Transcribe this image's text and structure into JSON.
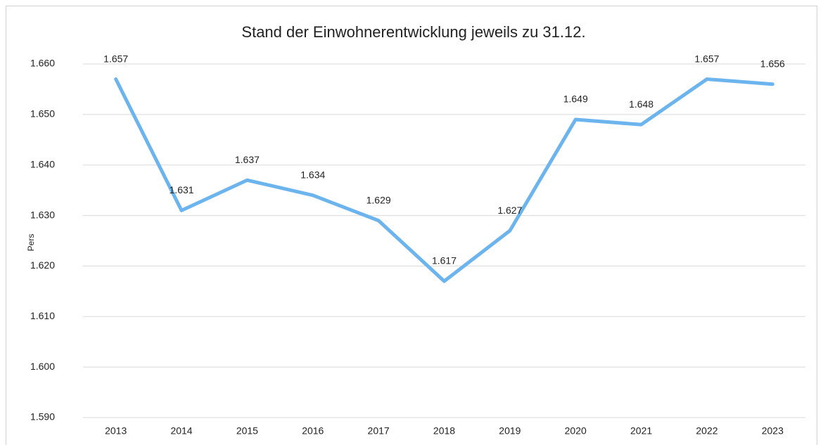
{
  "chart_data": {
    "type": "line",
    "title": "Stand der Einwohnerentwicklung jeweils zu 31.12.",
    "y_label": "Pers",
    "categories": [
      "2013",
      "2014",
      "2015",
      "2016",
      "2017",
      "2018",
      "2019",
      "2020",
      "2021",
      "2022",
      "2023"
    ],
    "values": [
      1657,
      1631,
      1637,
      1634,
      1629,
      1617,
      1627,
      1649,
      1648,
      1657,
      1656
    ],
    "value_labels": [
      "1.657",
      "1.631",
      "1.637",
      "1.634",
      "1.629",
      "1.617",
      "1.627",
      "1.649",
      "1.648",
      "1.657",
      "1.656"
    ],
    "color": "#6cb4ee",
    "ylim": [
      1590,
      1660
    ],
    "yticks": [
      {
        "value": 1590,
        "label": "1.590"
      },
      {
        "value": 1600,
        "label": "1.600"
      },
      {
        "value": 1610,
        "label": "1.610"
      },
      {
        "value": 1620,
        "label": "1.620"
      },
      {
        "value": 1630,
        "label": "1.630"
      },
      {
        "value": 1640,
        "label": "1.640"
      },
      {
        "value": 1650,
        "label": "1.650"
      },
      {
        "value": 1660,
        "label": "1.660"
      }
    ],
    "grid": true
  }
}
